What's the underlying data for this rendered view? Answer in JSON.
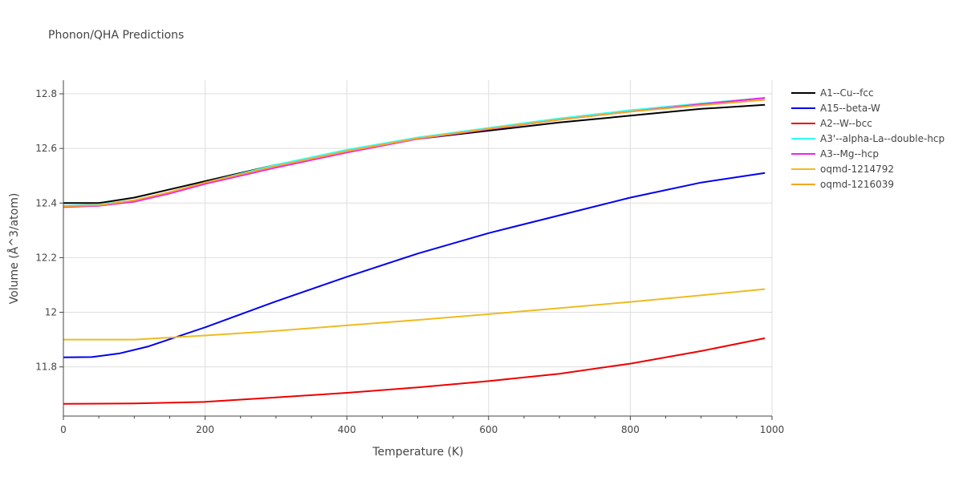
{
  "chart_data": {
    "type": "line",
    "title": "Phonon/QHA Predictions",
    "xlabel": "Temperature (K)",
    "ylabel": "Volume (Å^3/atom)",
    "xlim": [
      0,
      1000
    ],
    "ylim": [
      11.62,
      12.85
    ],
    "x_ticks": [
      0,
      200,
      400,
      600,
      800,
      1000
    ],
    "y_ticks": [
      11.8,
      12,
      12.2,
      12.4,
      12.6,
      12.8
    ],
    "x_tick_labels": [
      "0",
      "200",
      "400",
      "600",
      "800",
      "1000"
    ],
    "y_tick_labels": [
      "11.8",
      "12",
      "12.2",
      "12.4",
      "12.6",
      "12.8"
    ],
    "grid": true,
    "legend_position": "right",
    "series": [
      {
        "name": "A1--Cu--fcc",
        "color": "#000000",
        "x": [
          0,
          50,
          100,
          150,
          200,
          300,
          400,
          500,
          600,
          700,
          800,
          900,
          990
        ],
        "y": [
          12.4,
          12.4,
          12.42,
          12.45,
          12.48,
          12.54,
          12.59,
          12.635,
          12.665,
          12.695,
          12.72,
          12.745,
          12.76
        ]
      },
      {
        "name": "A15--beta-W",
        "color": "#0000ee",
        "x": [
          0,
          40,
          80,
          120,
          160,
          200,
          300,
          400,
          500,
          600,
          700,
          800,
          900,
          990
        ],
        "y": [
          11.835,
          11.836,
          11.85,
          11.875,
          11.91,
          11.945,
          12.04,
          12.13,
          12.215,
          12.29,
          12.355,
          12.42,
          12.475,
          12.51
        ]
      },
      {
        "name": "A2--W--bcc",
        "color": "#ee0000",
        "x": [
          0,
          100,
          200,
          300,
          400,
          500,
          600,
          700,
          800,
          900,
          990
        ],
        "y": [
          11.665,
          11.666,
          11.672,
          11.688,
          11.705,
          11.725,
          11.748,
          11.775,
          11.812,
          11.858,
          11.905
        ]
      },
      {
        "name": "A3'--alpha-La--double-hcp",
        "color": "#33ffee",
        "x": [
          0,
          50,
          100,
          150,
          200,
          300,
          400,
          500,
          600,
          700,
          800,
          900,
          990
        ],
        "y": [
          12.39,
          12.395,
          12.41,
          12.44,
          12.475,
          12.54,
          12.595,
          12.64,
          12.675,
          12.71,
          12.74,
          12.765,
          12.785
        ]
      },
      {
        "name": "A3--Mg--hcp",
        "color": "#ee22ee",
        "x": [
          0,
          50,
          100,
          150,
          200,
          300,
          400,
          500,
          600,
          700,
          800,
          900,
          990
        ],
        "y": [
          12.385,
          12.39,
          12.405,
          12.435,
          12.47,
          12.53,
          12.585,
          12.635,
          12.67,
          12.705,
          12.735,
          12.762,
          12.785
        ]
      },
      {
        "name": "oqmd-1214792",
        "color": "#eebb22",
        "x": [
          0,
          100,
          200,
          300,
          400,
          500,
          600,
          700,
          800,
          900,
          990
        ],
        "y": [
          11.9,
          11.9,
          11.915,
          11.932,
          11.952,
          11.972,
          11.993,
          12.015,
          12.038,
          12.062,
          12.085
        ]
      },
      {
        "name": "oqmd-1216039",
        "color": "#f5a623",
        "x": [
          0,
          50,
          100,
          150,
          200,
          300,
          400,
          500,
          600,
          700,
          800,
          900,
          990
        ],
        "y": [
          12.388,
          12.392,
          12.41,
          12.44,
          12.475,
          12.535,
          12.59,
          12.637,
          12.672,
          12.705,
          12.735,
          12.758,
          12.778
        ]
      }
    ]
  }
}
